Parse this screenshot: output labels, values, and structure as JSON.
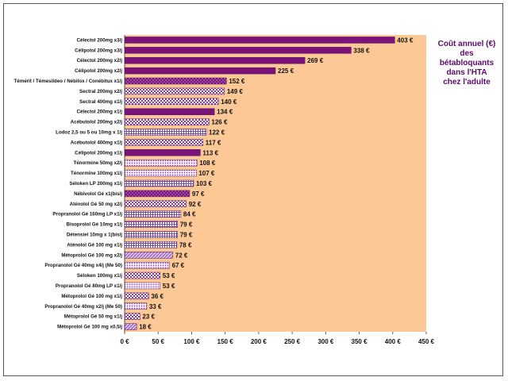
{
  "chart_data": {
    "type": "bar",
    "orientation": "horizontal",
    "title_lines": [
      "Coût annuel (€)",
      "des",
      "bétabloquants",
      "dans l'HTA",
      "chez l'adulte"
    ],
    "xlim": [
      0,
      450
    ],
    "ticks": [
      0,
      50,
      100,
      150,
      200,
      250,
      300,
      350,
      400,
      450
    ],
    "tick_suffix": " €",
    "value_suffix": " €",
    "grid": "vertical-none",
    "colors": {
      "solid": "#7a127a",
      "dotted_purple": "#8a2a8a",
      "checker_light": "#b898d8",
      "grid_light": "#9b7ac8",
      "dots_light": "#c8a8e0",
      "diagonal_light": "#a880c8",
      "plot_background": "#fcc896",
      "title": "#5a0a6a"
    },
    "categories": [
      "Célectol 200mg x3/j",
      "Célipotol 200mg x3/j",
      "Célectol 200mg x2/j",
      "Célipotol 200mg x2/j",
      "Témérit / Témesildeo / Nébilox / Conébitux x1/j",
      "Sectral 200mg x2/j",
      "Sectral 400mg x1/j",
      "Célectol 200mg x1/j",
      "Acébutolol 200mg x2/j",
      "Lodoz 2,5 ou 5 ou 10mg x 1/j",
      "Acébutolol 400mg x1/j",
      "Célipotol 200mg x1/j",
      "Ténormine 50mg x2/j",
      "Ténormine 100mg x1/j",
      "Séloken LP 200mg x1/j",
      "Nébivolol Gé x1(bis/j",
      "Aténolol Gé 50 mg x2/j",
      "Propranolol Gé 160mg LP x1/j",
      "Bisoprolol Gé 10mg x1/j",
      "Détensiel 10mg x 1(bis/j",
      "Aténolol Gé 100 mg x1/j",
      "Métoprolol Gé 100 mg x2/j",
      "Propranolol Gé 40mg x4/j (Me 50)",
      "Séloken 100mg x1/j",
      "Propranolol Gé 80mg LP x1/j",
      "Métoprolol Gé 100 mg x1/j",
      "Propranolol Gé 40mg x2/j (Me 50)",
      "Métoprolol Gé 50 mg x1/j",
      "Métoprolol Gé 100 mg x0,5/j"
    ],
    "values": [
      403,
      338,
      269,
      225,
      152,
      149,
      140,
      134,
      126,
      122,
      117,
      113,
      108,
      107,
      103,
      97,
      92,
      84,
      79,
      79,
      78,
      72,
      67,
      53,
      53,
      36,
      33,
      23,
      18
    ],
    "fill_styles": [
      "solid",
      "solid",
      "solid",
      "solid",
      "dotted_purple",
      "checker_light",
      "checker_light",
      "solid",
      "checker_light",
      "grid_light",
      "checker_light",
      "solid",
      "dots_light",
      "dots_light",
      "grid_light",
      "dotted_purple",
      "checker_light",
      "grid_light",
      "grid_light",
      "grid_light",
      "grid_light",
      "diagonal_light",
      "dots_light",
      "checker_light",
      "dots_light",
      "checker_light",
      "dots_light",
      "checker_light",
      "diagonal_light"
    ]
  }
}
